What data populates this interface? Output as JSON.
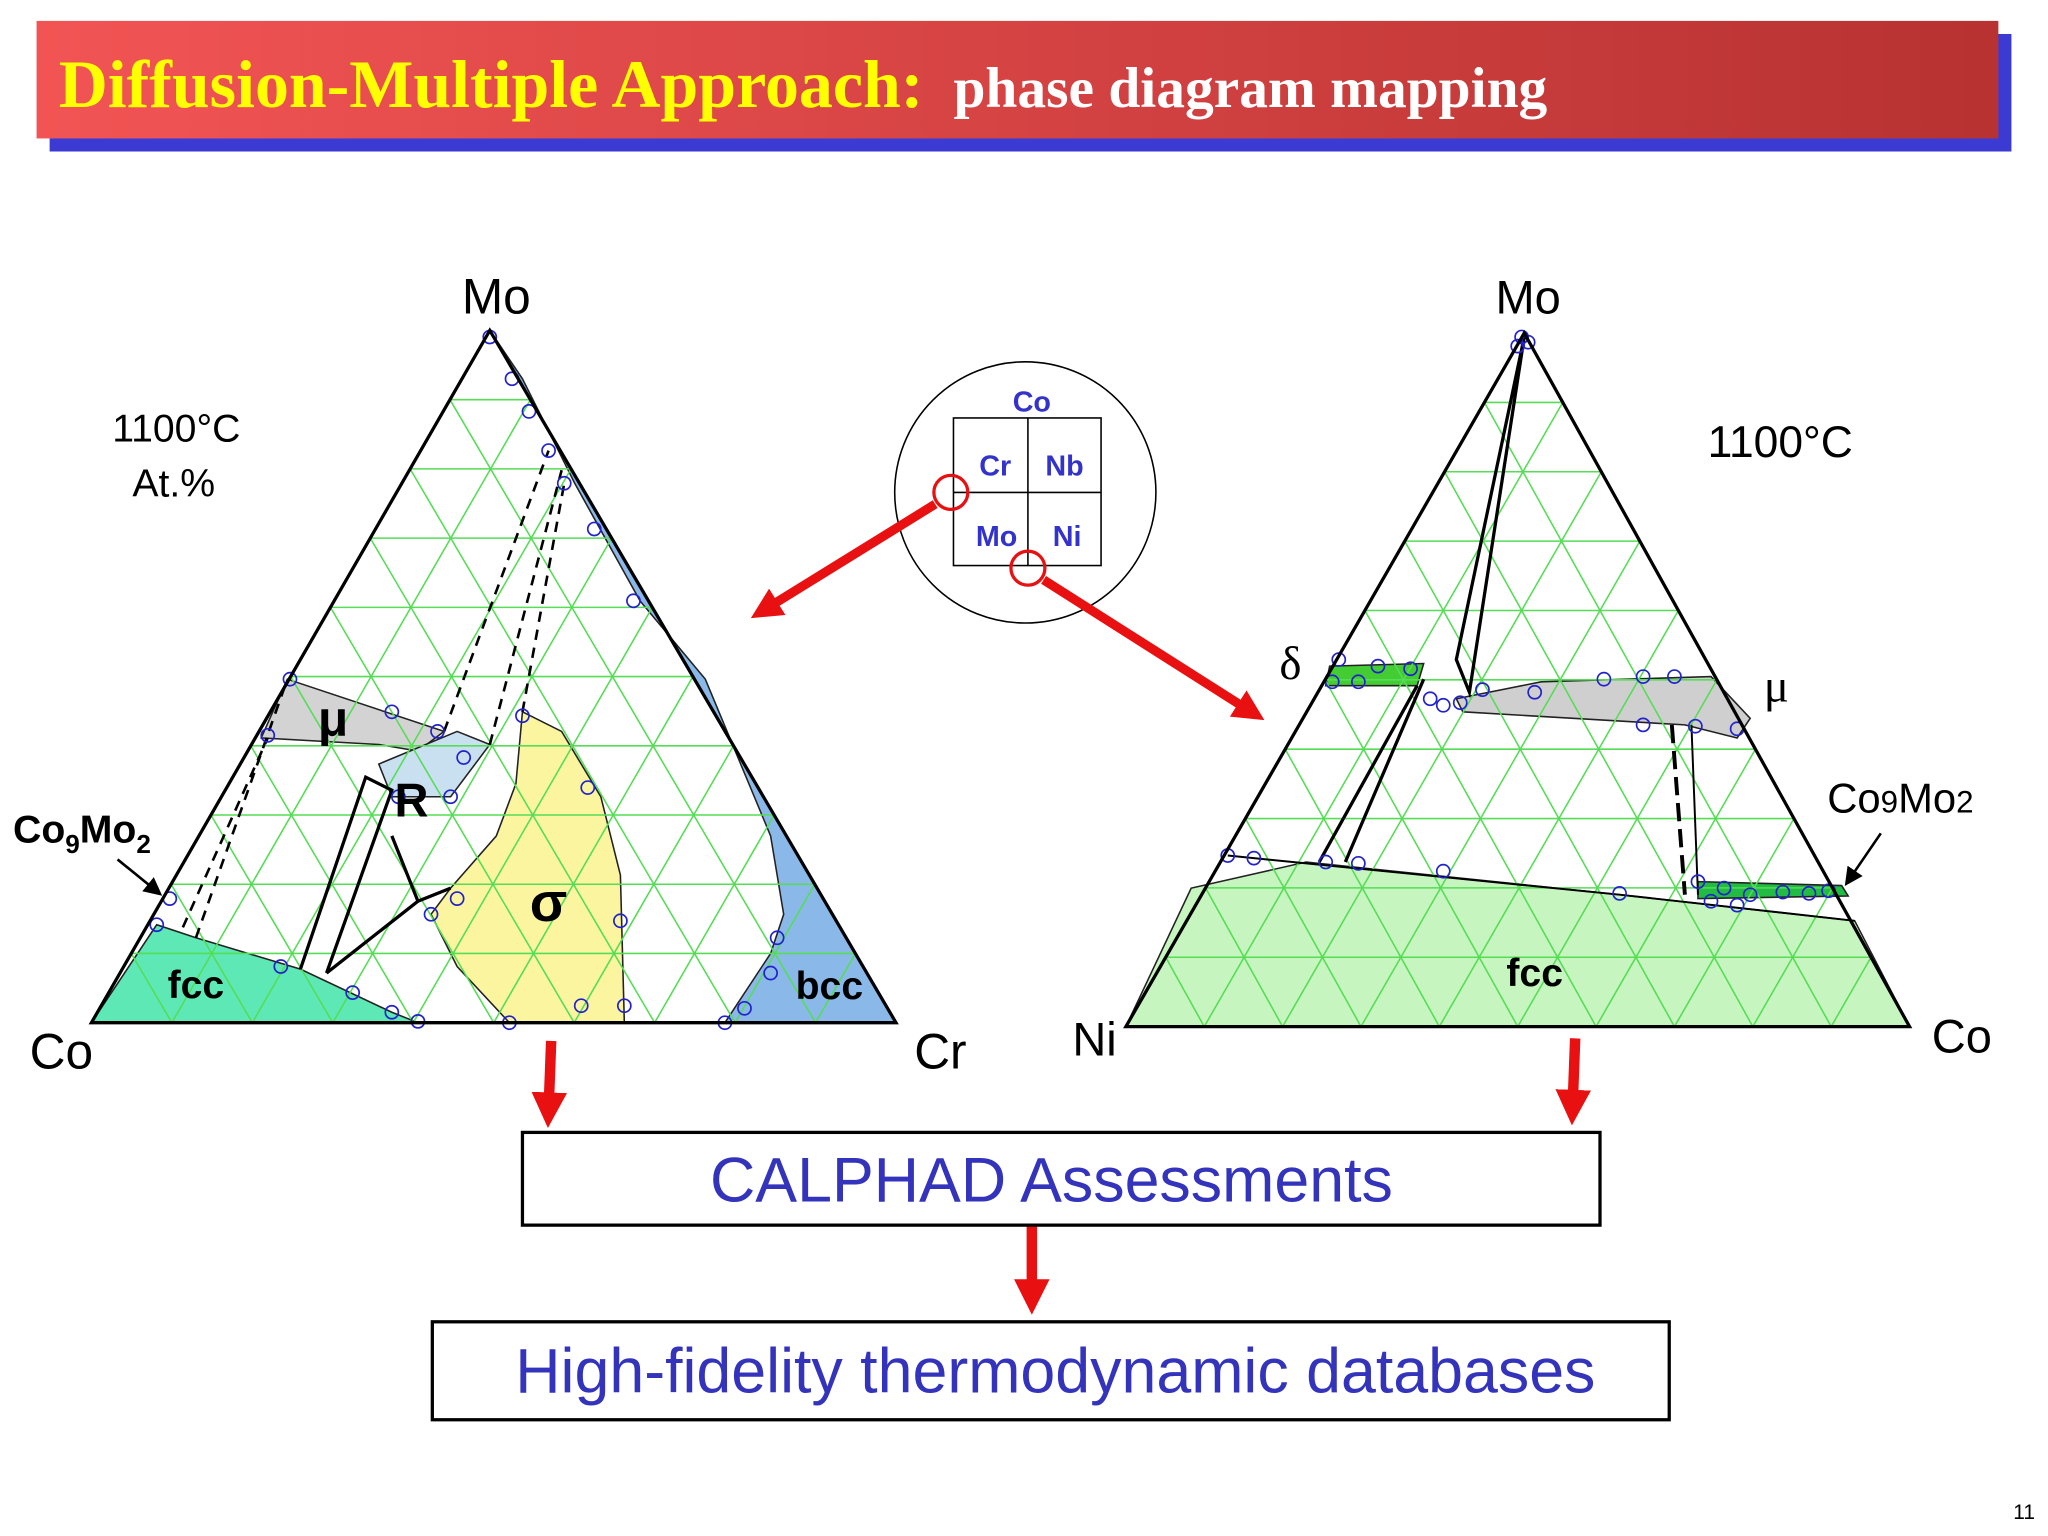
{
  "header": {
    "title": "Diffusion-Multiple Approach:",
    "subtitle": "phase diagram mapping"
  },
  "left_diagram": {
    "corners": {
      "top": "Mo",
      "left": "Co",
      "right": "Cr"
    },
    "temperature": "1100°C",
    "units": "At.%",
    "phases": {
      "mu": "μ",
      "r": "R",
      "sigma": "σ",
      "fcc": "fcc",
      "bcc": "bcc"
    },
    "compound": {
      "part1": "Co",
      "sub1": "9",
      "part2": "Mo",
      "sub2": "2"
    }
  },
  "sample_map": {
    "top": "Co",
    "cells": [
      "Cr",
      "Nb",
      "Mo",
      "Ni"
    ]
  },
  "right_diagram": {
    "corners": {
      "top": "Mo",
      "left": "Ni",
      "right": "Co"
    },
    "temperature": "1100°C",
    "phases": {
      "delta": "δ",
      "mu": "μ",
      "fcc": "fcc"
    },
    "compound": {
      "part1": "Co",
      "sub1": "9",
      "part2": "Mo",
      "sub2": "2"
    }
  },
  "flow": {
    "step1": "CALPHAD Assessments",
    "step2": "High-fidelity thermodynamic databases"
  },
  "page_number": "11"
}
